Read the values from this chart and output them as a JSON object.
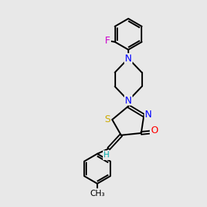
{
  "bg_color": "#e8e8e8",
  "atom_colors": {
    "C": "#000000",
    "N": "#0000ff",
    "O": "#ff0000",
    "S": "#ccaa00",
    "F": "#cc00cc",
    "H": "#00aaaa"
  },
  "bond_color": "#000000",
  "figsize": [
    3.0,
    3.0
  ],
  "dpi": 100,
  "lw": 1.6,
  "fs": 10,
  "fs_small": 8.5
}
